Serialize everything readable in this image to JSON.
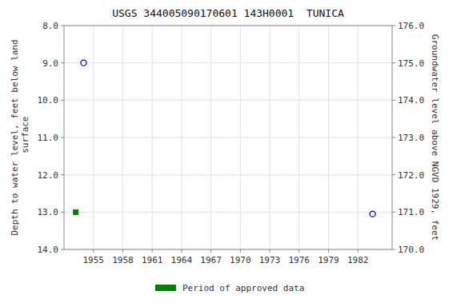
{
  "chart_data": {
    "type": "scatter",
    "title": "USGS 344005090170601 143H0001  TUNICA",
    "y_label": "Depth to water level, feet below land\n surface",
    "y2_label": "Groundwater level above NGVD 1929, feet",
    "xlim": [
      1952.0,
      1985.5
    ],
    "xticks": [
      1955,
      1958,
      1961,
      1964,
      1967,
      1970,
      1973,
      1976,
      1979,
      1982
    ],
    "ylim": [
      14.0,
      8.0
    ],
    "yticks": [
      {
        "value": 8.0,
        "label": "8.0"
      },
      {
        "value": 9.0,
        "label": "9.0"
      },
      {
        "value": 10.0,
        "label": "10.0"
      },
      {
        "value": 11.0,
        "label": "11.0"
      },
      {
        "value": 12.0,
        "label": "12.0"
      },
      {
        "value": 13.0,
        "label": "13.0"
      },
      {
        "value": 14.0,
        "label": "14.0"
      }
    ],
    "y2lim": [
      170.0,
      176.0
    ],
    "y2ticks": [
      {
        "value": 176.0,
        "label": "176.0"
      },
      {
        "value": 175.0,
        "label": "175.0"
      },
      {
        "value": 174.0,
        "label": "174.0"
      },
      {
        "value": 173.0,
        "label": "173.0"
      },
      {
        "value": 172.0,
        "label": "172.0"
      },
      {
        "value": 171.0,
        "label": "171.0"
      },
      {
        "value": 170.0,
        "label": "170.0"
      }
    ],
    "grid": true,
    "legend": "bottom",
    "series": [
      {
        "color": "#0000cc",
        "marker": "circle",
        "x": [
          1954.0,
          1983.5
        ],
        "values": [
          9.0,
          13.05
        ]
      },
      {
        "name": "Period of approved data",
        "color": "#008000",
        "marker": "square",
        "x": [
          1953.2
        ],
        "values": [
          13.0
        ]
      }
    ]
  }
}
